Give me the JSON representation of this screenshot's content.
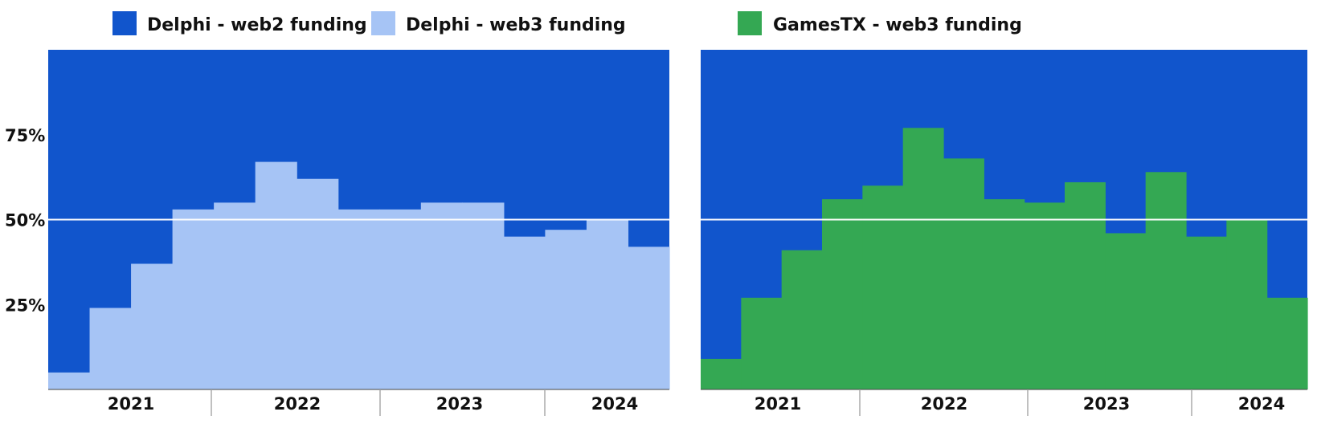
{
  "colors": {
    "web2": "#1155cc",
    "delphi_web3": "#a6c4f5",
    "gamestx_web3": "#34a853",
    "reference_line": "#ffffff",
    "axis": "#aaaaaa",
    "text": "#111111"
  },
  "legend": {
    "items": [
      {
        "label": "Delphi - web2 funding",
        "color": "#1155cc"
      },
      {
        "label": "Delphi - web3 funding",
        "color": "#a6c4f5"
      },
      {
        "label": "GamesTX - web3 funding",
        "color": "#34a853"
      }
    ]
  },
  "chart_data": [
    {
      "type": "area",
      "stacked_percent": true,
      "step": true,
      "categories": [
        "2021 Q1",
        "2021 Q2",
        "2021 Q3",
        "2021 Q4",
        "2022 Q1",
        "2022 Q2",
        "2022 Q3",
        "2022 Q4",
        "2023 Q1",
        "2023 Q2",
        "2023 Q3",
        "2023 Q4",
        "2024 Q1",
        "2024 Q2",
        "2024 Q3"
      ],
      "series": [
        {
          "name": "Delphi - web3 funding",
          "values": [
            5,
            24,
            37,
            53,
            55,
            67,
            62,
            53,
            53,
            55,
            55,
            45,
            47,
            50,
            42
          ]
        },
        {
          "name": "Delphi - web2 funding",
          "values": [
            95,
            76,
            63,
            47,
            45,
            33,
            38,
            47,
            47,
            45,
            45,
            55,
            53,
            50,
            58
          ]
        }
      ],
      "year_labels": [
        "2021",
        "2022",
        "2023",
        "2024"
      ],
      "y_ticks": [
        "25%",
        "50%",
        "75%"
      ],
      "ylim": [
        0,
        100
      ],
      "reference_line": 50
    },
    {
      "type": "area",
      "stacked_percent": true,
      "step": true,
      "categories": [
        "2021 Q1",
        "2021 Q2",
        "2021 Q3",
        "2021 Q4",
        "2022 Q1",
        "2022 Q2",
        "2022 Q3",
        "2022 Q4",
        "2023 Q1",
        "2023 Q2",
        "2023 Q3",
        "2023 Q4",
        "2024 Q1",
        "2024 Q2",
        "2024 Q3"
      ],
      "series": [
        {
          "name": "GamesTX - web3 funding",
          "values": [
            9,
            27,
            41,
            56,
            60,
            77,
            68,
            56,
            55,
            61,
            46,
            64,
            45,
            50,
            27
          ]
        },
        {
          "name": "Delphi - web2 funding",
          "values": [
            91,
            73,
            59,
            44,
            40,
            23,
            32,
            44,
            45,
            39,
            54,
            36,
            55,
            50,
            73
          ]
        }
      ],
      "year_labels": [
        "2021",
        "2022",
        "2023",
        "2024"
      ],
      "ylim": [
        0,
        100
      ],
      "reference_line": 50
    }
  ]
}
